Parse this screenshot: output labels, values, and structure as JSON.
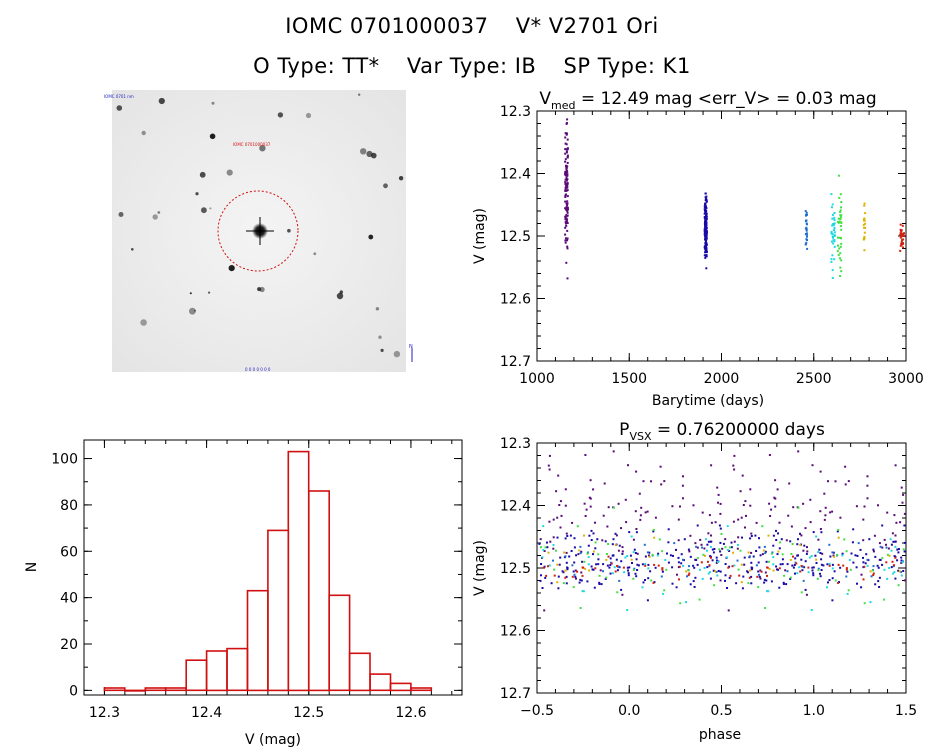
{
  "header": {
    "id_label": "IOMC 0701000037",
    "name_label": "V* V2701 Ori",
    "otype": "O Type: TT*",
    "vartype": "Var Type: IB",
    "sptype": "SP Type: K1"
  },
  "finder": {
    "label_top_left": "IOMC 0701 nm",
    "label_target": "IOMC 0701000037",
    "label_bottom": "0 0 0 0 0 0 0",
    "arrow_label": "N"
  },
  "chart_data": [
    {
      "id": "lightcurve",
      "type": "scatter",
      "title_prefix": "V",
      "title_sub": "med",
      "title_rest": " = 12.49 mag <err_V> = 0.03 mag",
      "xlabel": "Barytime (days)",
      "ylabel": "V (mag)",
      "xlim": [
        1000,
        3000
      ],
      "ylim": [
        12.7,
        12.3
      ],
      "y_inverted": true,
      "xticks": [
        1000,
        1500,
        2000,
        2500,
        3000
      ],
      "yticks": [
        12.3,
        12.4,
        12.5,
        12.6,
        12.7
      ],
      "groups": [
        {
          "color": "#5a0a78",
          "x_center": 1160,
          "x_spread": 8,
          "y_center": 12.43,
          "y_spread": 0.05,
          "count": 110
        },
        {
          "color": "#1a0aa8",
          "x_center": 1915,
          "x_spread": 6,
          "y_center": 12.49,
          "y_spread": 0.025,
          "count": 160
        },
        {
          "color": "#1f6fd0",
          "x_center": 2460,
          "x_spread": 4,
          "y_center": 12.49,
          "y_spread": 0.02,
          "count": 25
        },
        {
          "color": "#1fd8e0",
          "x_center": 2605,
          "x_spread": 10,
          "y_center": 12.49,
          "y_spread": 0.03,
          "count": 35
        },
        {
          "color": "#40e040",
          "x_center": 2640,
          "x_spread": 10,
          "y_center": 12.5,
          "y_spread": 0.04,
          "count": 35
        },
        {
          "color": "#e0b000",
          "x_center": 2775,
          "x_spread": 4,
          "y_center": 12.49,
          "y_spread": 0.02,
          "count": 18
        },
        {
          "color": "#d02010",
          "x_center": 2980,
          "x_spread": 12,
          "y_center": 12.5,
          "y_spread": 0.01,
          "count": 30
        }
      ]
    },
    {
      "id": "histogram",
      "type": "bar",
      "xlabel": "V (mag)",
      "ylabel": "N",
      "xlim": [
        12.28,
        12.65
      ],
      "ylim": [
        -2,
        108
      ],
      "xticks": [
        12.3,
        12.4,
        12.5,
        12.6
      ],
      "yticks": [
        0,
        20,
        40,
        60,
        80,
        100
      ],
      "bin_width": 0.02,
      "bin_left_edges": [
        12.3,
        12.32,
        12.34,
        12.36,
        12.38,
        12.4,
        12.42,
        12.44,
        12.46,
        12.48,
        12.5,
        12.52,
        12.54,
        12.56,
        12.58,
        12.6
      ],
      "values": [
        1,
        0,
        1,
        1,
        13,
        17,
        18,
        43,
        69,
        103,
        86,
        41,
        16,
        7,
        3,
        1
      ],
      "bar_color": "#d01010"
    },
    {
      "id": "phased",
      "type": "scatter",
      "title_prefix": "P",
      "title_sub": "VSX",
      "title_rest": " = 0.76200000 days",
      "xlabel": "phase",
      "ylabel": "V (mag)",
      "xlim": [
        -0.5,
        1.5
      ],
      "ylim": [
        12.7,
        12.3
      ],
      "y_inverted": true,
      "xticks": [
        -0.5,
        0.0,
        0.5,
        1.0,
        1.5
      ],
      "xticklabels": [
        "−0.5",
        "0.0",
        "0.5",
        "1.0",
        "1.5"
      ],
      "yticks": [
        12.3,
        12.4,
        12.5,
        12.6,
        12.7
      ],
      "period_days": 0.762
    }
  ]
}
